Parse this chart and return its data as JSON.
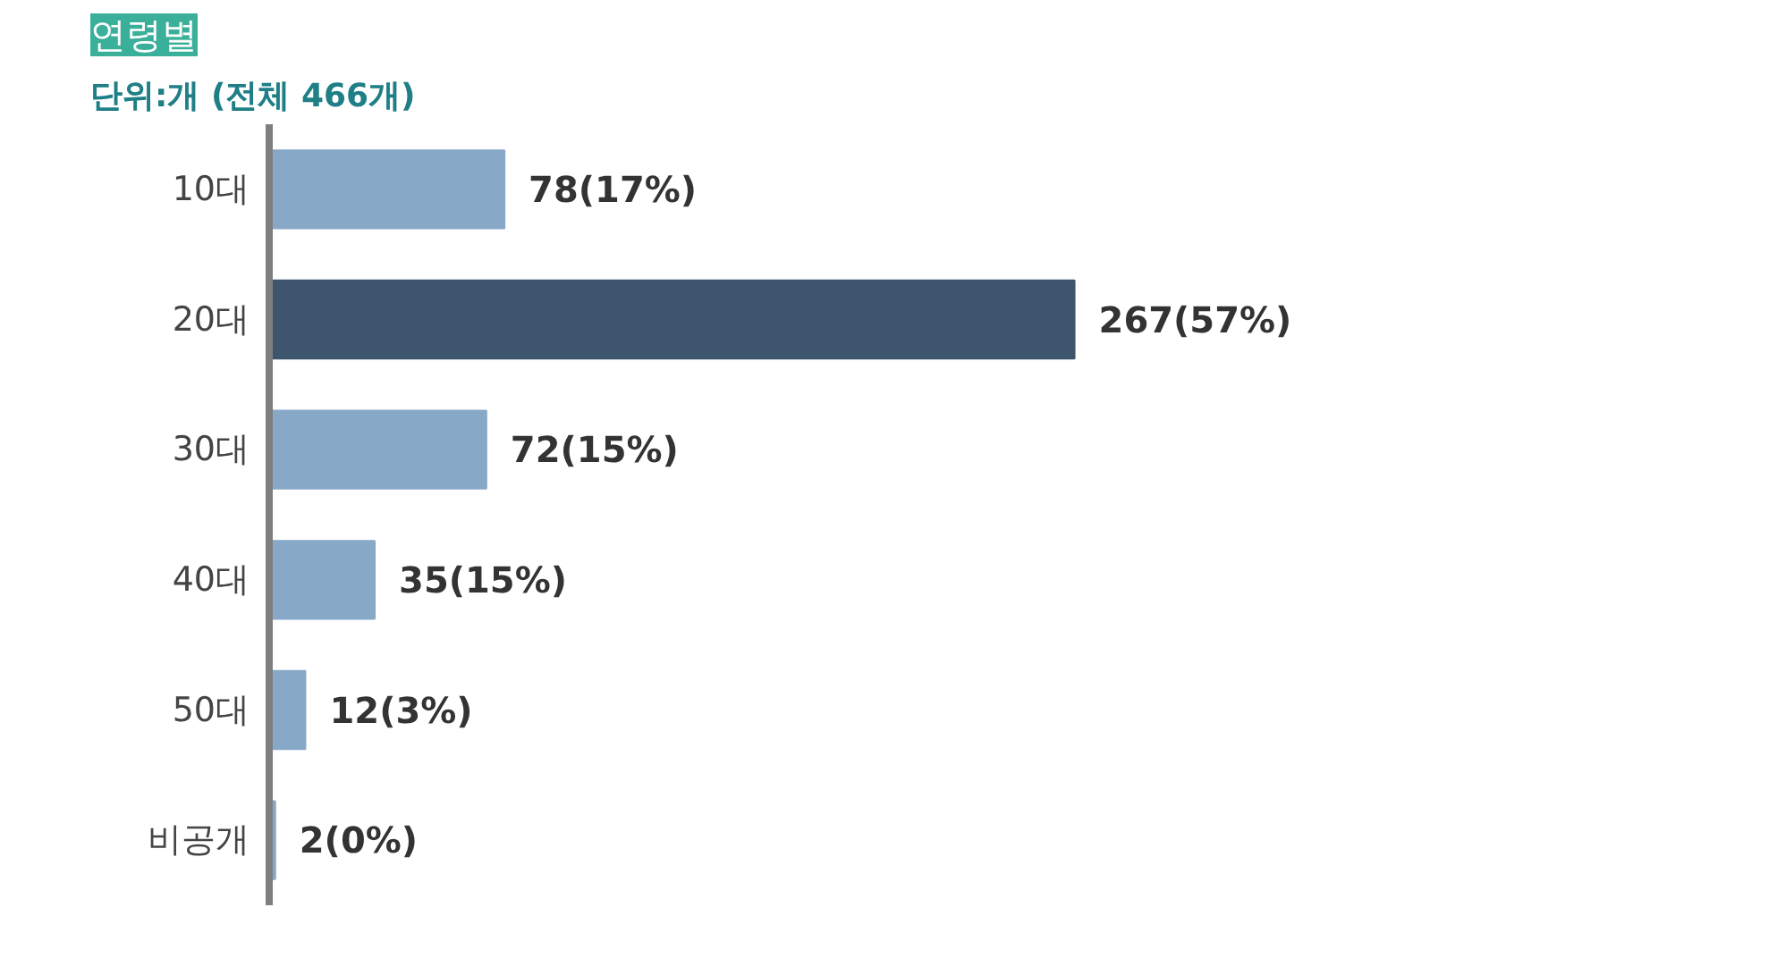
{
  "chart_data": {
    "type": "bar",
    "orientation": "horizontal",
    "title": "연령별",
    "subtitle": "단위:개 (전체 466개)",
    "categories": [
      "10대",
      "20대",
      "30대",
      "40대",
      "50대",
      "비공개"
    ],
    "values": [
      78,
      267,
      72,
      35,
      12,
      2
    ],
    "colors": [
      "#88a8c8",
      "#3d566e",
      "#88a8c8",
      "#88a8c8",
      "#88a8c8",
      "#88a8c8"
    ],
    "value_labels": [
      "78(17%)",
      "267(57%)",
      "72(15%)",
      "35(15%)",
      "12(3%)",
      "2(0%)"
    ],
    "tick_labels": "y",
    "grid": false
  }
}
